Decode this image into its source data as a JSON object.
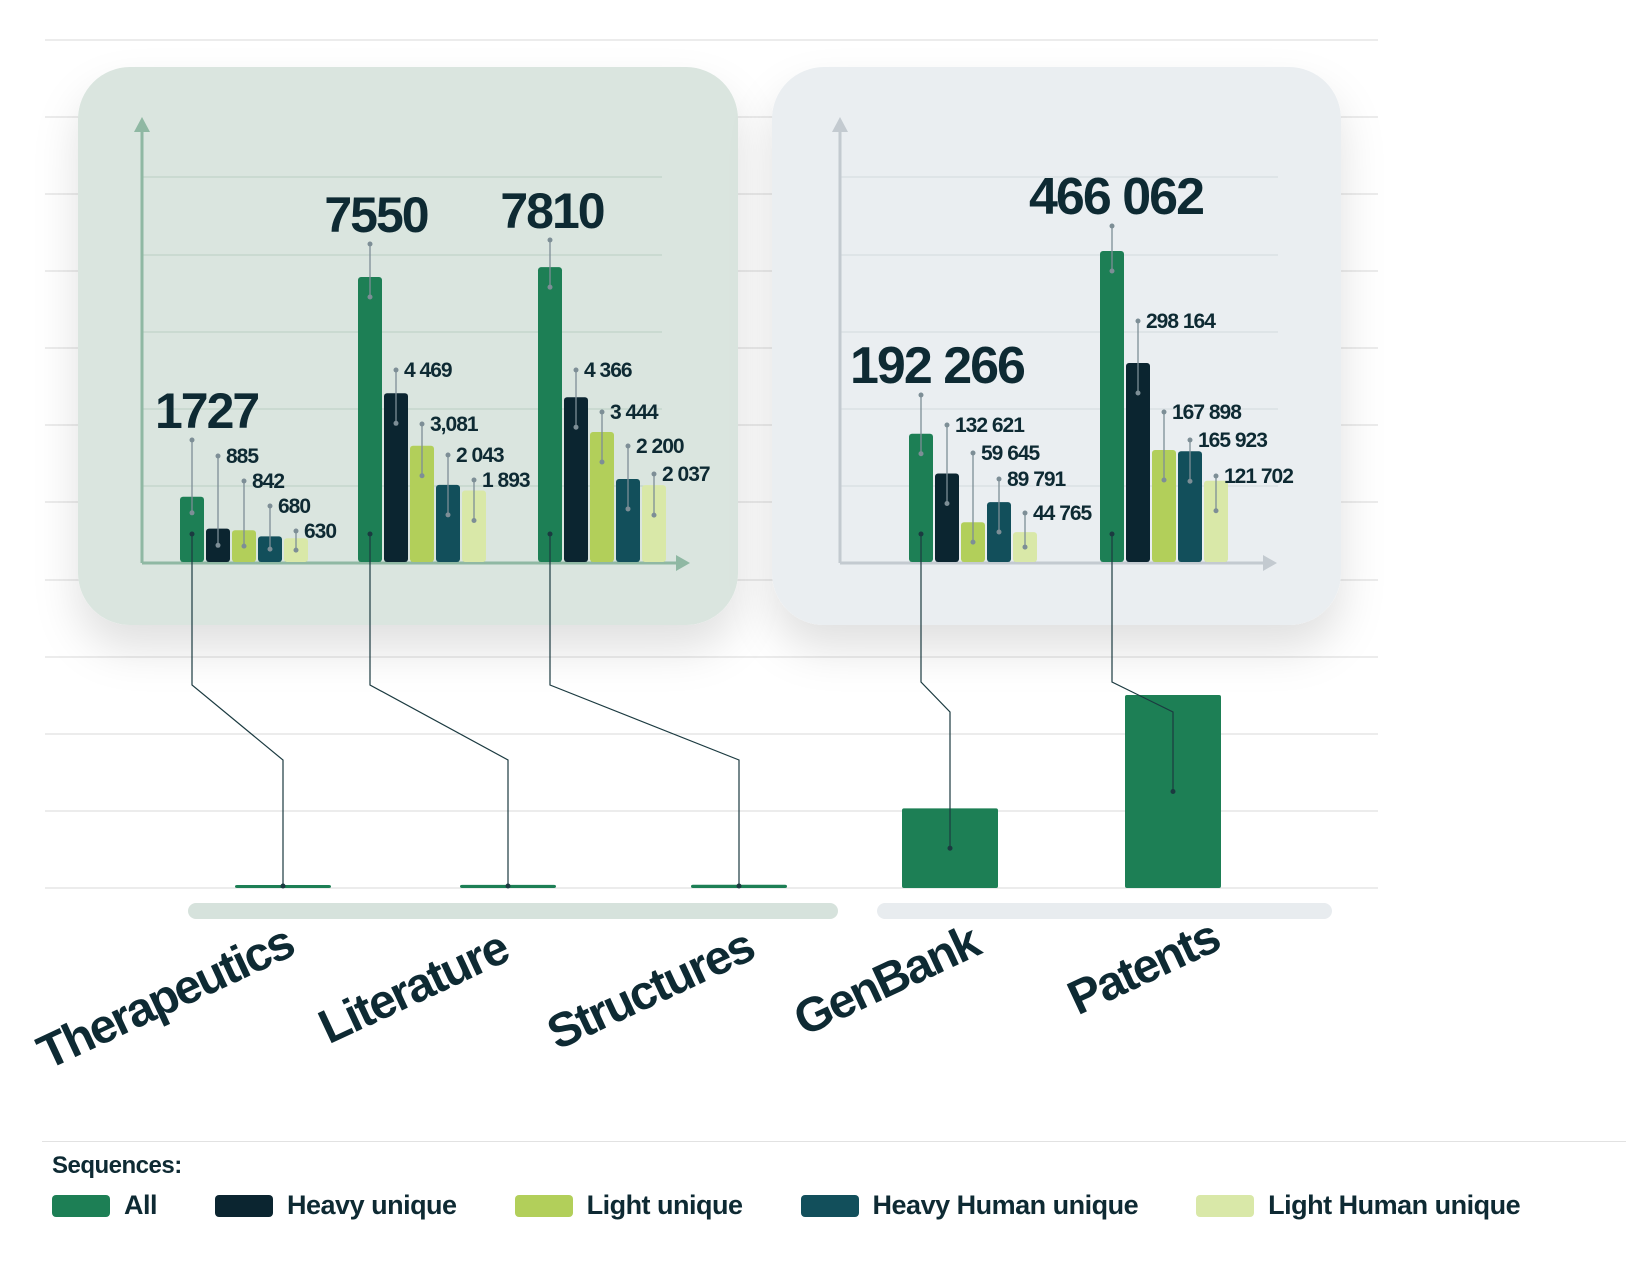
{
  "chart_data": {
    "type": "bar",
    "title": "",
    "xlabel": "",
    "ylabel": "",
    "categories": [
      "Therapeutics",
      "Literature",
      "Structures",
      "GenBank",
      "Patents"
    ],
    "series": [
      {
        "name": "All",
        "values": [
          1727,
          7550,
          7810,
          192266,
          466062
        ],
        "labels": [
          "1727",
          "7550",
          "7810",
          "192 266",
          "466 062"
        ]
      },
      {
        "name": "Heavy unique",
        "values": [
          885,
          4469,
          4366,
          132621,
          298164
        ],
        "labels": [
          "885",
          "4 469",
          "4 366",
          "132 621",
          "298 164"
        ]
      },
      {
        "name": "Light unique",
        "values": [
          842,
          3081,
          3444,
          59645,
          167898
        ],
        "labels": [
          "842",
          "3,081",
          "3 444",
          "59 645",
          "167 898"
        ]
      },
      {
        "name": "Heavy Human unique",
        "values": [
          680,
          2043,
          2200,
          89791,
          165923
        ],
        "labels": [
          "680",
          "2 043",
          "2 200",
          "89 791",
          "165 923"
        ]
      },
      {
        "name": "Light Human unique",
        "values": [
          630,
          1893,
          2037,
          44765,
          121702
        ],
        "labels": [
          "630",
          "1 893",
          "2 037",
          "44 765",
          "121 702"
        ]
      }
    ],
    "panels": [
      {
        "name": "curated",
        "categories": [
          0,
          1,
          2
        ],
        "ylim": [
          0,
          8500
        ]
      },
      {
        "name": "public",
        "categories": [
          3,
          4
        ],
        "ylim": [
          0,
          500000
        ]
      }
    ],
    "legend_position": "bottom",
    "grid": true
  },
  "legend": {
    "title": "Sequences:",
    "items": [
      "All",
      "Heavy unique",
      "Light unique",
      "Heavy Human unique",
      "Light Human unique"
    ]
  },
  "colors": {
    "All": "#1d7f55",
    "Heavy unique": "#0b2530",
    "Light unique": "#b2cf5a",
    "Heavy Human unique": "#124f5b",
    "Light Human unique": "#d9e8a8",
    "text": "#0e2a33"
  }
}
